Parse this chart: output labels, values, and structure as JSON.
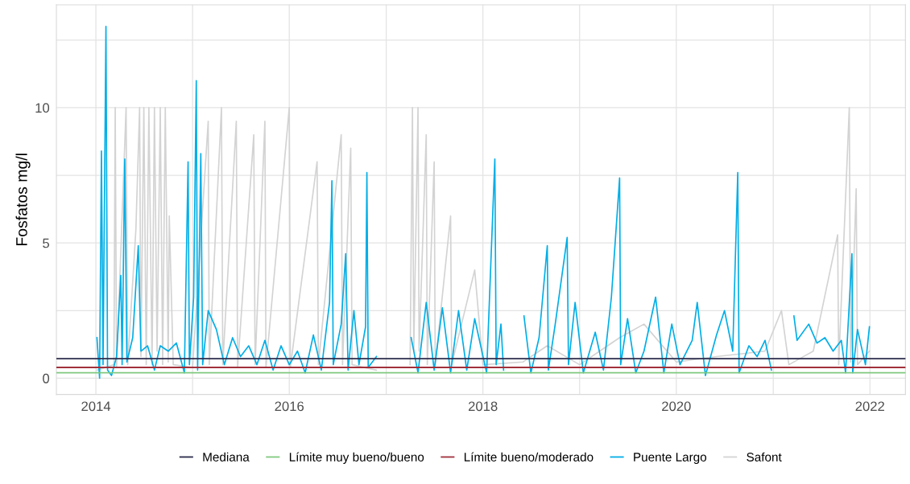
{
  "chart_data": {
    "type": "line",
    "ylabel": "Fosfatos mg/l",
    "xlim": [
      "2013-08-05",
      "2022-05-15"
    ],
    "xticks": [
      "2014",
      {
        "value": "2015",
        "label": null
      },
      "2016",
      {
        "value": "2017",
        "label": null
      },
      "2018",
      {
        "value": "2019",
        "label": null
      },
      "2020",
      {
        "value": "2021",
        "label": null
      },
      "2022"
    ],
    "ylim": [
      -0.6,
      13.8
    ],
    "yticks": [
      0,
      {
        "value": 2.5,
        "label": null
      },
      5,
      {
        "value": 7.5,
        "label": null
      },
      10,
      {
        "value": 12.5,
        "label": null
      }
    ],
    "grid": true,
    "legend": "bottom",
    "series": [
      {
        "name": "Safont",
        "color": "#d3d3d3",
        "x": [
          "2014-01-05",
          "2014-03-10",
          "2014-03-15",
          "2014-03-20",
          "2014-04-25",
          "2014-05-01",
          "2014-06-01",
          "2014-06-15",
          "2014-06-20",
          "2014-07-01",
          "2014-07-10",
          "2014-07-20",
          "2014-08-01",
          "2014-08-10",
          "2014-08-20",
          "2014-09-01",
          "2014-09-10",
          "2014-09-20",
          "2014-10-01",
          "2014-10-05",
          "2014-10-20",
          "2015-01-01",
          "2015-03-01",
          "2015-03-05",
          "2015-04-20",
          "2015-04-25",
          "2015-06-15",
          "2015-06-20",
          "2015-08-20",
          "2015-08-25",
          "2015-10-01",
          "2015-10-05",
          "2016-01-01",
          "2016-01-05",
          "2016-04-15",
          "2016-04-20",
          "2016-07-15",
          "2016-07-20",
          "2016-08-20",
          "2016-08-25",
          "2016-11-25",
          "2017-01-01",
          "2017-04-01",
          "2017-04-10",
          "2017-04-15",
          "2017-05-01",
          "2017-05-05",
          "2017-06-01",
          "2017-06-05",
          "2017-07-01",
          "2017-07-05",
          "2017-09-01",
          "2017-09-05",
          "2017-12-01",
          "2018-01-01",
          "2018-06-01",
          "2018-09-01",
          "2019-01-01",
          "2019-06-01",
          "2019-09-01",
          "2020-01-01",
          "2020-06-01",
          "2020-12-01",
          "2021-02-01",
          "2021-03-01",
          "2021-06-01",
          "2021-09-01",
          "2021-09-05",
          "2021-10-15",
          "2021-10-20",
          "2021-11-10",
          "2021-11-15",
          "2021-12-30"
        ],
        "values": [
          0.3,
          0.5,
          10.0,
          0.4,
          10.0,
          0.5,
          5.5,
          10.0,
          0.8,
          10.0,
          0.5,
          10.0,
          0.5,
          10.0,
          1.0,
          10.0,
          0.5,
          10.0,
          0.6,
          6.0,
          0.5,
          0.4,
          9.5,
          0.5,
          10.0,
          0.5,
          9.5,
          0.4,
          9.0,
          0.5,
          9.5,
          0.4,
          10.0,
          0.4,
          8.0,
          0.5,
          9.0,
          0.5,
          8.5,
          0.5,
          0.3,
          null,
          0.5,
          10.0,
          1.0,
          10.0,
          1.0,
          9.0,
          0.5,
          8.0,
          0.5,
          6.0,
          0.5,
          4.0,
          0.5,
          0.6,
          1.2,
          0.5,
          1.5,
          2.0,
          0.6,
          0.8,
          1.0,
          2.5,
          0.5,
          1.0,
          5.3,
          0.5,
          10.0,
          0.6,
          7.0,
          0.5,
          1.0
        ]
      },
      {
        "name": "Puente Largo",
        "color": "#00aee6",
        "x": [
          "2014-01-05",
          "2014-01-15",
          "2014-01-22",
          "2014-01-28",
          "2014-02-08",
          "2014-02-14",
          "2014-03-01",
          "2014-03-20",
          "2014-04-05",
          "2014-04-10",
          "2014-04-20",
          "2014-04-28",
          "2014-05-20",
          "2014-06-10",
          "2014-06-20",
          "2014-07-15",
          "2014-08-10",
          "2014-09-01",
          "2014-10-01",
          "2014-11-01",
          "2014-12-01",
          "2014-12-15",
          "2014-12-20",
          "2015-01-05",
          "2015-01-15",
          "2015-01-20",
          "2015-02-01",
          "2015-02-08",
          "2015-03-01",
          "2015-04-01",
          "2015-05-01",
          "2015-06-01",
          "2015-07-01",
          "2015-08-01",
          "2015-09-01",
          "2015-10-01",
          "2015-11-01",
          "2015-12-01",
          "2016-01-01",
          "2016-02-01",
          "2016-03-01",
          "2016-04-01",
          "2016-05-01",
          "2016-06-01",
          "2016-06-10",
          "2016-06-15",
          "2016-07-15",
          "2016-08-01",
          "2016-08-10",
          "2016-09-01",
          "2016-09-20",
          "2016-10-15",
          "2016-10-20",
          "2016-10-25",
          "2016-11-25",
          "2017-01-01",
          "2017-04-05",
          "2017-05-01",
          "2017-06-01",
          "2017-07-01",
          "2017-08-01",
          "2017-09-01",
          "2017-10-01",
          "2017-11-01",
          "2017-12-01",
          "2018-01-15",
          "2018-02-15",
          "2018-02-20",
          "2018-03-10",
          "2018-03-20",
          "2018-04-20",
          "2018-06-05",
          "2018-07-01",
          "2018-08-01",
          "2018-09-01",
          "2018-09-05",
          "2018-10-01",
          "2018-11-15",
          "2018-11-20",
          "2018-12-15",
          "2019-01-15",
          "2019-03-01",
          "2019-04-01",
          "2019-05-01",
          "2019-06-01",
          "2019-06-05",
          "2019-07-01",
          "2019-08-01",
          "2019-09-01",
          "2019-10-15",
          "2019-11-15",
          "2019-12-15",
          "2020-01-15",
          "2020-03-01",
          "2020-03-20",
          "2020-04-20",
          "2020-06-01",
          "2020-07-01",
          "2020-08-01",
          "2020-08-20",
          "2020-08-25",
          "2020-10-01",
          "2020-11-01",
          "2020-12-01",
          "2020-12-25",
          "2021-02-01",
          "2021-03-20",
          "2021-04-01",
          "2021-05-15",
          "2021-06-15",
          "2021-07-15",
          "2021-08-15",
          "2021-09-15",
          "2021-10-01",
          "2021-10-25",
          "2021-10-28",
          "2021-11-15",
          "2021-12-15",
          "2021-12-30"
        ],
        "values": [
          1.5,
          0.0,
          8.4,
          0.5,
          13.0,
          0.3,
          0.1,
          0.8,
          3.8,
          0.5,
          8.1,
          0.6,
          1.5,
          4.9,
          1.0,
          1.2,
          0.3,
          1.2,
          1.0,
          1.3,
          0.2,
          8.0,
          0.5,
          3.0,
          11.0,
          0.3,
          8.3,
          0.5,
          2.5,
          1.8,
          0.5,
          1.5,
          0.8,
          1.2,
          0.5,
          1.4,
          0.3,
          1.2,
          0.5,
          1.0,
          0.2,
          1.6,
          0.3,
          2.8,
          7.3,
          0.5,
          2.0,
          4.6,
          0.3,
          2.5,
          0.5,
          1.9,
          7.6,
          0.4,
          0.8,
          null,
          1.5,
          0.2,
          2.8,
          0.3,
          2.6,
          0.2,
          2.5,
          0.3,
          2.2,
          0.2,
          8.1,
          0.5,
          2.0,
          0.3,
          null,
          2.3,
          0.2,
          1.5,
          4.9,
          0.3,
          2.0,
          5.2,
          0.5,
          2.8,
          0.2,
          1.7,
          0.3,
          3.0,
          7.4,
          0.5,
          2.2,
          0.2,
          1.0,
          3.0,
          0.2,
          2.0,
          0.5,
          1.4,
          2.8,
          0.1,
          1.6,
          2.5,
          1.0,
          7.6,
          0.2,
          1.2,
          0.8,
          1.4,
          0.3,
          null,
          2.3,
          1.4,
          2.0,
          1.3,
          1.5,
          1.0,
          1.4,
          0.2,
          4.6,
          0.2,
          1.8,
          0.5,
          1.9
        ]
      }
    ],
    "ref_lines": [
      {
        "axis": "y",
        "value": 0.72,
        "label": "Mediana",
        "color": "#2b2b4b"
      },
      {
        "axis": "y",
        "value": 0.2,
        "label": "Límite muy bueno/bueno",
        "color": "#7fc97f"
      },
      {
        "axis": "y",
        "value": 0.4,
        "label": "Límite bueno/moderado",
        "color": "#a0303a"
      }
    ]
  }
}
